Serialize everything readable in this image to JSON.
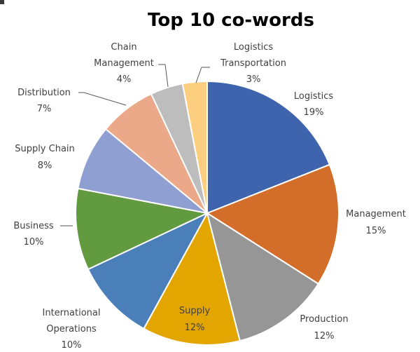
{
  "chart_data": {
    "type": "pie",
    "title": "Top 10 co-words",
    "slices": [
      {
        "name": "Logistics",
        "value": 19,
        "label": "19%",
        "color": "#3e64ad"
      },
      {
        "name": "Management",
        "value": 15,
        "label": "15%",
        "color": "#d26d2a"
      },
      {
        "name": "Production",
        "value": 12,
        "label": "12%",
        "color": "#969696"
      },
      {
        "name": "Supply",
        "value": 12,
        "label": "12%",
        "color": "#e3a600"
      },
      {
        "name": "International Operations",
        "value": 10,
        "label": "10%",
        "color": "#4a7fba"
      },
      {
        "name": "Business",
        "value": 10,
        "label": "10%",
        "color": "#629a3f"
      },
      {
        "name": "Supply Chain",
        "value": 8,
        "label": "8%",
        "color": "#909fd1"
      },
      {
        "name": "Distribution",
        "value": 7,
        "label": "7%",
        "color": "#eca98a"
      },
      {
        "name": "Chain Management",
        "value": 4,
        "label": "4%",
        "color": "#bdbdbd"
      },
      {
        "name": "Logistics Transportation",
        "value": 3,
        "label": "3%",
        "color": "#fccf80"
      }
    ],
    "start": "12 o'clock",
    "direction": "clockwise",
    "legend": "none"
  }
}
